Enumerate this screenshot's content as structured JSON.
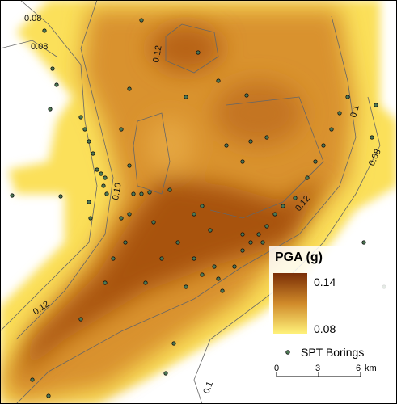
{
  "map": {
    "contour_labels": [
      "0.08",
      "0.08",
      "0.12",
      "0.1",
      "0.08",
      "0.10",
      "0.12",
      "0.12",
      "0.1"
    ],
    "legend": {
      "title": "PGA (g)",
      "max_label": "0.14",
      "min_label": "0.08",
      "points_label": "SPT Borings"
    },
    "scale_bar": {
      "ticks": [
        "0",
        "3",
        "6"
      ],
      "unit": "km"
    }
  }
}
